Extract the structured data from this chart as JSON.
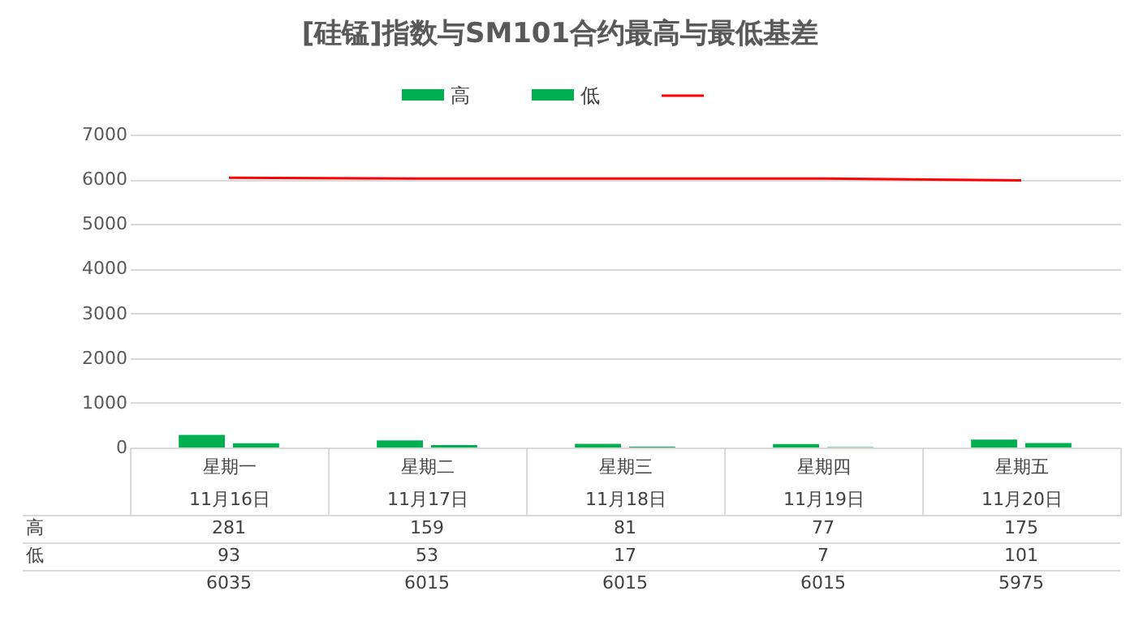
{
  "chart_data": {
    "type": "bar",
    "title": "[硅锰]指数与SM101合约最高与最低基差",
    "categories": [
      "星期一\n11月16日",
      "星期二\n11月17日",
      "星期三\n11月18日",
      "星期四\n11月19日",
      "星期五\n11月20日"
    ],
    "series": [
      {
        "name": "高",
        "color": "#00b050",
        "values": [
          281,
          159,
          81,
          77,
          175
        ]
      },
      {
        "name": "低",
        "color": "#00b050",
        "values": [
          93,
          53,
          17,
          7,
          101
        ]
      },
      {
        "type": "line",
        "color": "#ff0000",
        "values": [
          6035,
          6015,
          6015,
          6015,
          5975
        ]
      }
    ],
    "ylim": [
      0,
      7000
    ],
    "yticks": [
      0,
      1000,
      2000,
      3000,
      4000,
      5000,
      6000,
      7000
    ],
    "grid": "y",
    "legend": "top",
    "data_labels": true
  }
}
